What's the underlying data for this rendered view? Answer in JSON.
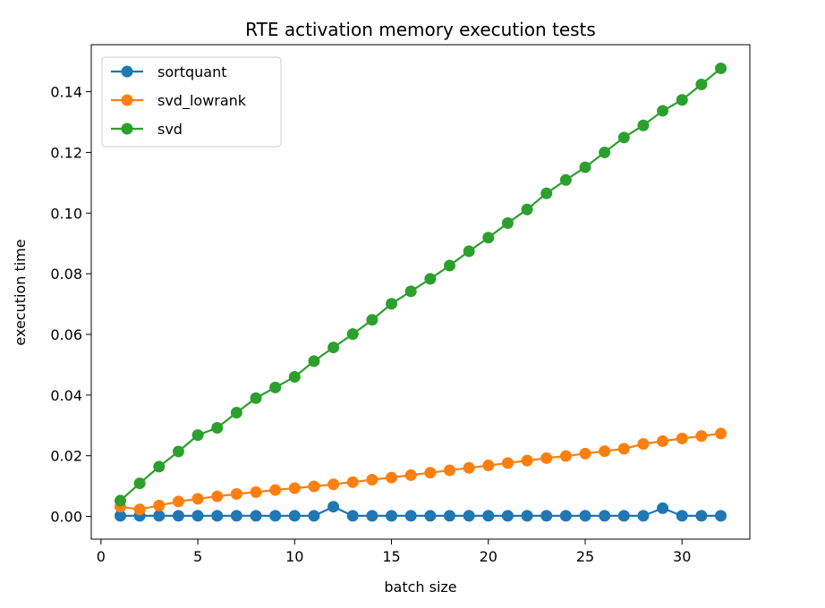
{
  "chart_data": {
    "type": "line",
    "title": "RTE activation memory execution tests",
    "xlabel": "batch size",
    "ylabel": "execution time",
    "xlim": [
      -0.5,
      33.5
    ],
    "ylim": [
      -0.0075,
      0.1555
    ],
    "xticks": [
      0,
      5,
      10,
      15,
      20,
      25,
      30
    ],
    "yticks": [
      0.0,
      0.02,
      0.04,
      0.06,
      0.08,
      0.1,
      0.12,
      0.14
    ],
    "ytick_labels": [
      "0.00",
      "0.02",
      "0.04",
      "0.06",
      "0.08",
      "0.10",
      "0.12",
      "0.14"
    ],
    "grid": false,
    "legend_position": "top-left",
    "x": [
      1,
      2,
      3,
      4,
      5,
      6,
      7,
      8,
      9,
      10,
      11,
      12,
      13,
      14,
      15,
      16,
      17,
      18,
      19,
      20,
      21,
      22,
      23,
      24,
      25,
      26,
      27,
      28,
      29,
      30,
      31,
      32
    ],
    "series": [
      {
        "name": "sortquant",
        "color": "#1f77b4",
        "values": [
          0.0002,
          0.0002,
          0.0002,
          0.0002,
          0.0002,
          0.0002,
          0.0002,
          0.0002,
          0.0002,
          0.0002,
          0.0002,
          0.0032,
          0.0002,
          0.0002,
          0.0002,
          0.0002,
          0.0002,
          0.0002,
          0.0002,
          0.0002,
          0.0002,
          0.0002,
          0.0002,
          0.0002,
          0.0002,
          0.0002,
          0.0002,
          0.0002,
          0.0027,
          0.0002,
          0.0002,
          0.0002
        ]
      },
      {
        "name": "svd_lowrank",
        "color": "#ff7f0e",
        "values": [
          0.0032,
          0.0023,
          0.0036,
          0.0049,
          0.0058,
          0.0066,
          0.0074,
          0.008,
          0.0087,
          0.0093,
          0.0099,
          0.0106,
          0.0113,
          0.0121,
          0.0128,
          0.0136,
          0.0144,
          0.0152,
          0.016,
          0.0168,
          0.0176,
          0.0184,
          0.0192,
          0.0199,
          0.0207,
          0.0215,
          0.0223,
          0.0239,
          0.0248,
          0.0257,
          0.0265,
          0.0273
        ]
      },
      {
        "name": "svd",
        "color": "#2ca02c",
        "values": [
          0.0052,
          0.0109,
          0.0164,
          0.0214,
          0.0268,
          0.0292,
          0.0342,
          0.039,
          0.0425,
          0.046,
          0.0512,
          0.0557,
          0.0601,
          0.0648,
          0.0701,
          0.0742,
          0.0783,
          0.0827,
          0.0874,
          0.0919,
          0.0967,
          0.1012,
          0.1065,
          0.1109,
          0.1151,
          0.12,
          0.1249,
          0.1289,
          0.1337,
          0.1373,
          0.1424,
          0.1477
        ]
      }
    ]
  }
}
